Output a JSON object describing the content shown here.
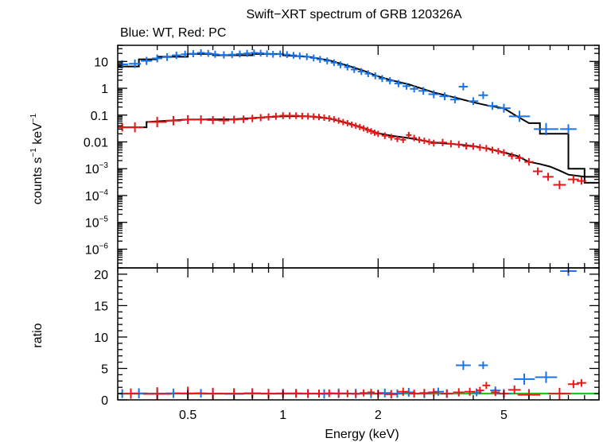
{
  "chart_data": [
    {
      "type": "scatter",
      "panel": "spectrum",
      "title": "Swift−XRT spectrum of GRB 120326A",
      "subtitle": "Blue: WT, Red: PC",
      "xlabel": "Energy (keV)",
      "ylabel_base": "counts s",
      "ylabel_sup1": "−1",
      "ylabel_mid": " keV",
      "ylabel_sup2": "−1",
      "xscale": "log",
      "yscale": "log",
      "xlim": [
        0.3,
        10
      ],
      "ylim": [
        2e-07,
        40
      ],
      "x_ticks": [
        0.5,
        1,
        2,
        5
      ],
      "y_tick_labels": [
        {
          "value": 10,
          "base": "10",
          "exp": ""
        },
        {
          "value": 1,
          "base": "1",
          "exp": ""
        },
        {
          "value": 0.1,
          "base": "0.1",
          "exp": ""
        },
        {
          "value": 0.01,
          "base": "0.01",
          "exp": ""
        },
        {
          "value": 0.001,
          "base": "10",
          "exp": "−3"
        },
        {
          "value": 0.0001,
          "base": "10",
          "exp": "−4"
        },
        {
          "value": 1e-05,
          "base": "10",
          "exp": "−5"
        },
        {
          "value": 1e-06,
          "base": "10",
          "exp": "−6"
        }
      ],
      "series": [
        {
          "name": "WT",
          "color": "#1874e8",
          "points": [
            [
              0.31,
              7.8
            ],
            [
              0.34,
              8.2
            ],
            [
              0.37,
              10.5
            ],
            [
              0.4,
              13
            ],
            [
              0.43,
              14.5
            ],
            [
              0.46,
              17
            ],
            [
              0.49,
              18.5
            ],
            [
              0.52,
              19.5
            ],
            [
              0.55,
              21
            ],
            [
              0.58,
              20
            ],
            [
              0.61,
              18.5
            ],
            [
              0.65,
              17.5
            ],
            [
              0.69,
              18
            ],
            [
              0.73,
              19
            ],
            [
              0.77,
              20
            ],
            [
              0.81,
              21
            ],
            [
              0.85,
              20.5
            ],
            [
              0.89,
              19.5
            ],
            [
              0.93,
              18.5
            ],
            [
              0.98,
              19
            ],
            [
              1.03,
              18
            ],
            [
              1.08,
              17
            ],
            [
              1.13,
              16
            ],
            [
              1.19,
              15
            ],
            [
              1.25,
              13.5
            ],
            [
              1.31,
              12
            ],
            [
              1.38,
              10.5
            ],
            [
              1.45,
              9
            ],
            [
              1.52,
              7.5
            ],
            [
              1.6,
              6.2
            ],
            [
              1.68,
              5
            ],
            [
              1.77,
              4.2
            ],
            [
              1.86,
              3.5
            ],
            [
              1.96,
              2.9
            ],
            [
              2.06,
              2.3
            ],
            [
              2.18,
              1.9
            ],
            [
              2.32,
              1.5
            ],
            [
              2.46,
              1.2
            ],
            [
              2.6,
              0.95
            ],
            [
              2.78,
              0.8
            ],
            [
              3.0,
              0.6
            ],
            [
              3.25,
              0.5
            ],
            [
              3.5,
              0.38
            ],
            [
              3.72,
              1.15
            ],
            [
              4.0,
              0.33
            ],
            [
              4.3,
              0.55
            ],
            [
              4.6,
              0.22
            ],
            [
              5.0,
              0.18
            ],
            [
              5.6,
              0.09
            ],
            [
              6.8,
              0.03
            ],
            [
              8.0,
              0.03
            ]
          ],
          "ratio": [
            [
              0.31,
              1.0
            ],
            [
              0.35,
              1.05
            ],
            [
              0.4,
              1.0
            ],
            [
              0.45,
              1.05
            ],
            [
              0.5,
              1.0
            ],
            [
              0.55,
              1.05
            ],
            [
              0.6,
              1.0
            ],
            [
              0.7,
              0.95
            ],
            [
              0.8,
              1.05
            ],
            [
              0.9,
              1.0
            ],
            [
              1.0,
              1.05
            ],
            [
              1.1,
              1.0
            ],
            [
              1.2,
              1.0
            ],
            [
              1.35,
              0.95
            ],
            [
              1.5,
              1.05
            ],
            [
              1.7,
              1.0
            ],
            [
              1.9,
              1.0
            ],
            [
              2.1,
              1.1
            ],
            [
              2.3,
              1.0
            ],
            [
              2.5,
              1.2
            ],
            [
              2.8,
              1.0
            ],
            [
              3.1,
              1.3
            ],
            [
              3.3,
              1.0
            ],
            [
              3.72,
              5.5
            ],
            [
              4.1,
              1.2
            ],
            [
              4.3,
              5.5
            ],
            [
              4.7,
              1.5
            ],
            [
              5.0,
              1.0
            ],
            [
              5.8,
              3.3
            ],
            [
              6.8,
              3.6
            ],
            [
              8.0,
              20.5
            ]
          ]
        },
        {
          "name": "PC",
          "color": "#e81818",
          "points": [
            [
              0.31,
              0.035
            ],
            [
              0.34,
              0.035
            ],
            [
              0.4,
              0.055
            ],
            [
              0.45,
              0.062
            ],
            [
              0.5,
              0.068
            ],
            [
              0.55,
              0.068
            ],
            [
              0.6,
              0.065
            ],
            [
              0.65,
              0.063
            ],
            [
              0.7,
              0.068
            ],
            [
              0.75,
              0.07
            ],
            [
              0.8,
              0.075
            ],
            [
              0.85,
              0.08
            ],
            [
              0.9,
              0.085
            ],
            [
              0.95,
              0.09
            ],
            [
              1.0,
              0.095
            ],
            [
              1.05,
              0.095
            ],
            [
              1.1,
              0.095
            ],
            [
              1.15,
              0.092
            ],
            [
              1.2,
              0.09
            ],
            [
              1.25,
              0.088
            ],
            [
              1.3,
              0.085
            ],
            [
              1.35,
              0.08
            ],
            [
              1.4,
              0.075
            ],
            [
              1.45,
              0.07
            ],
            [
              1.5,
              0.062
            ],
            [
              1.55,
              0.055
            ],
            [
              1.6,
              0.05
            ],
            [
              1.65,
              0.044
            ],
            [
              1.7,
              0.04
            ],
            [
              1.75,
              0.036
            ],
            [
              1.8,
              0.032
            ],
            [
              1.85,
              0.028
            ],
            [
              1.9,
              0.025
            ],
            [
              1.95,
              0.022
            ],
            [
              2.0,
              0.02
            ],
            [
              2.1,
              0.017
            ],
            [
              2.2,
              0.015
            ],
            [
              2.3,
              0.013
            ],
            [
              2.4,
              0.012
            ],
            [
              2.5,
              0.018
            ],
            [
              2.6,
              0.014
            ],
            [
              2.7,
              0.012
            ],
            [
              2.8,
              0.011
            ],
            [
              2.9,
              0.01
            ],
            [
              3.0,
              0.009
            ],
            [
              3.2,
              0.0095
            ],
            [
              3.4,
              0.0085
            ],
            [
              3.6,
              0.008
            ],
            [
              3.8,
              0.007
            ],
            [
              4.0,
              0.0068
            ],
            [
              4.2,
              0.0062
            ],
            [
              4.4,
              0.0058
            ],
            [
              4.6,
              0.005
            ],
            [
              4.8,
              0.0045
            ],
            [
              5.0,
              0.004
            ],
            [
              5.3,
              0.003
            ],
            [
              5.6,
              0.0025
            ],
            [
              6.0,
              0.0018
            ],
            [
              6.4,
              0.0008
            ],
            [
              6.9,
              0.0005
            ],
            [
              7.5,
              0.00025
            ],
            [
              8.3,
              0.0004
            ],
            [
              8.8,
              0.00035
            ]
          ],
          "ratio": [
            [
              0.33,
              1.0
            ],
            [
              0.4,
              0.95
            ],
            [
              0.5,
              1.05
            ],
            [
              0.6,
              1.0
            ],
            [
              0.7,
              1.0
            ],
            [
              0.8,
              1.05
            ],
            [
              0.9,
              1.0
            ],
            [
              1.0,
              1.0
            ],
            [
              1.1,
              1.05
            ],
            [
              1.2,
              1.0
            ],
            [
              1.3,
              1.0
            ],
            [
              1.4,
              1.05
            ],
            [
              1.5,
              1.0
            ],
            [
              1.6,
              1.0
            ],
            [
              1.7,
              0.95
            ],
            [
              1.8,
              1.1
            ],
            [
              1.9,
              1.2
            ],
            [
              2.0,
              1.0
            ],
            [
              2.2,
              0.9
            ],
            [
              2.4,
              1.3
            ],
            [
              2.6,
              1.0
            ],
            [
              2.8,
              1.1
            ],
            [
              3.0,
              1.2
            ],
            [
              3.3,
              1.0
            ],
            [
              3.6,
              1.2
            ],
            [
              3.9,
              1.3
            ],
            [
              4.2,
              1.5
            ],
            [
              4.4,
              2.3
            ],
            [
              4.7,
              1.2
            ],
            [
              5.0,
              1.0
            ],
            [
              5.4,
              1.6
            ],
            [
              6.0,
              0.8
            ],
            [
              7.5,
              1.0
            ],
            [
              8.3,
              2.5
            ],
            [
              8.8,
              2.7
            ]
          ]
        }
      ],
      "model_wt": [
        [
          0.3,
          6.5
        ],
        [
          0.35,
          6.5
        ],
        [
          0.35,
          12
        ],
        [
          0.4,
          12
        ],
        [
          0.4,
          15
        ],
        [
          0.5,
          15
        ],
        [
          0.5,
          19
        ],
        [
          0.6,
          19
        ],
        [
          0.6,
          17
        ],
        [
          0.8,
          17
        ],
        [
          0.8,
          19
        ],
        [
          1.0,
          19
        ],
        [
          1.0,
          17
        ],
        [
          1.2,
          15
        ],
        [
          1.4,
          11
        ],
        [
          1.6,
          7
        ],
        [
          1.8,
          4.5
        ],
        [
          2.0,
          2.8
        ],
        [
          2.2,
          2.0
        ],
        [
          2.5,
          1.4
        ],
        [
          3.0,
          0.7
        ],
        [
          3.5,
          0.45
        ],
        [
          4.0,
          0.3
        ],
        [
          4.5,
          0.22
        ],
        [
          5.0,
          0.18
        ],
        [
          5.5,
          0.09
        ],
        [
          6.0,
          0.05
        ],
        [
          6.5,
          0.05
        ],
        [
          6.5,
          0.02
        ],
        [
          8.0,
          0.02
        ],
        [
          8.0,
          0.001
        ],
        [
          9.0,
          0.001
        ],
        [
          9.0,
          0.0003
        ],
        [
          10,
          0.0003
        ]
      ],
      "model_pc": [
        [
          0.3,
          0.035
        ],
        [
          0.37,
          0.035
        ],
        [
          0.37,
          0.055
        ],
        [
          0.5,
          0.068
        ],
        [
          0.7,
          0.07
        ],
        [
          0.9,
          0.085
        ],
        [
          1.0,
          0.09
        ],
        [
          1.2,
          0.09
        ],
        [
          1.4,
          0.075
        ],
        [
          1.6,
          0.05
        ],
        [
          1.8,
          0.033
        ],
        [
          2.0,
          0.021
        ],
        [
          2.2,
          0.017
        ],
        [
          2.5,
          0.014
        ],
        [
          3.0,
          0.0095
        ],
        [
          3.5,
          0.0082
        ],
        [
          4.0,
          0.007
        ],
        [
          4.5,
          0.0055
        ],
        [
          5.0,
          0.004
        ],
        [
          5.5,
          0.003
        ],
        [
          6.0,
          0.0018
        ],
        [
          6.5,
          0.0015
        ],
        [
          7.0,
          0.0012
        ],
        [
          7.5,
          0.00085
        ],
        [
          8.0,
          0.0006
        ],
        [
          9.0,
          0.0005
        ],
        [
          10,
          0.0005
        ]
      ]
    },
    {
      "type": "scatter",
      "panel": "ratio",
      "xlabel": "Energy (keV)",
      "ylabel": "ratio",
      "xscale": "log",
      "xlim": [
        0.3,
        10
      ],
      "ylim": [
        0,
        21
      ],
      "x_ticks": [
        0.5,
        1,
        2,
        5
      ],
      "x_tick_labels": [
        "0.5",
        "1",
        "2",
        "5"
      ],
      "y_ticks": [
        0,
        5,
        10,
        15,
        20
      ],
      "y_tick_labels": [
        "0",
        "5",
        "10",
        "15",
        "20"
      ],
      "reference_line": {
        "value": 1,
        "color": "#22c422"
      }
    }
  ]
}
